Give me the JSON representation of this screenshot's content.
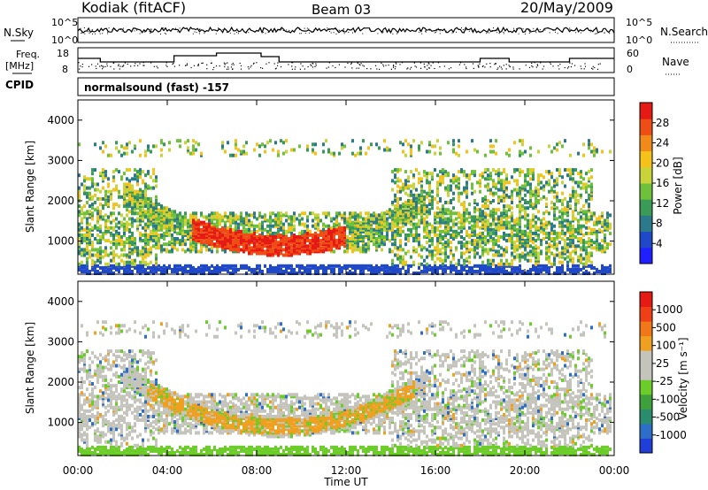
{
  "header": {
    "title": "Kodiak (fitACF)",
    "beam": "Beam 03",
    "date": "20/May/2009"
  },
  "noise_panel": {
    "left_label": "N.Sky",
    "right_label": "N.Search",
    "left_ticks": [
      "10^5",
      "10^0"
    ],
    "right_ticks": [
      "10^5",
      "10^0"
    ]
  },
  "freq_panel": {
    "left_label_1": "Freq.",
    "left_label_2": "[MHz]",
    "right_label": "Nave",
    "left_ticks": [
      "18",
      "8"
    ],
    "right_ticks": [
      "60",
      "0"
    ]
  },
  "cpid": {
    "label": "CPID",
    "text": "normalsound (fast) -157"
  },
  "chart_data": [
    {
      "type": "heatmap",
      "name": "Power",
      "ylabel": "Slant Range [km]",
      "xlabel": "Time UT",
      "ylim": [
        180,
        4500
      ],
      "yticks": [
        "1000",
        "2000",
        "3000",
        "4000"
      ],
      "xticks": [
        "00:00",
        "04:00",
        "08:00",
        "12:00",
        "16:00",
        "20:00",
        "00:00"
      ],
      "colorbar": {
        "label": "Power [dB]",
        "ticks": [
          "4",
          "8",
          "12",
          "16",
          "20",
          "24",
          "28"
        ],
        "colors": [
          "#1f1fff",
          "#1f49c8",
          "#2b7a8c",
          "#3a9a58",
          "#6fc03a",
          "#c8d43a",
          "#f5c21c",
          "#f08a1a",
          "#ee4e16",
          "#e61a14"
        ]
      }
    },
    {
      "type": "heatmap",
      "name": "Velocity",
      "ylabel": "Slant Range [km]",
      "xlabel": "Time UT",
      "ylim": [
        180,
        4500
      ],
      "yticks": [
        "1000",
        "2000",
        "3000",
        "4000"
      ],
      "xticks": [
        "00:00",
        "04:00",
        "08:00",
        "12:00",
        "16:00",
        "20:00",
        "00:00"
      ],
      "colorbar": {
        "label": "Velocity [m s⁻¹]",
        "ticks": [
          "1000",
          "500",
          "100",
          "25",
          "-25",
          "-100",
          "-500",
          "-1000"
        ],
        "colors": [
          "#1f3fd8",
          "#2d6ec8",
          "#2a8c6e",
          "#3da03a",
          "#6ccc2a",
          "#c4c4bc",
          "#c4c4bc",
          "#f0a020",
          "#f07818",
          "#ee4014",
          "#e61a14"
        ]
      }
    }
  ]
}
